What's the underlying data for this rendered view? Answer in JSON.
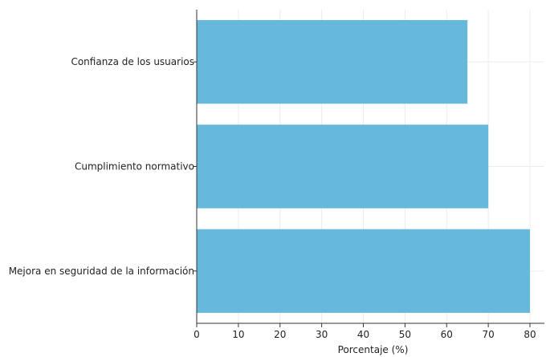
{
  "chart_data": {
    "type": "bar",
    "orientation": "horizontal",
    "categories": [
      "Confianza de los usuarios",
      "Cumplimiento normativo",
      "Mejora en seguridad de la información"
    ],
    "values": [
      65,
      70,
      80
    ],
    "xlabel": "Porcentaje (%)",
    "ylabel": "",
    "title": "",
    "xlim": [
      0,
      80
    ],
    "xticks": [
      "0",
      "10",
      "20",
      "30",
      "40",
      "50",
      "60",
      "70",
      "80"
    ],
    "grid": true,
    "legend": "none",
    "bar_color": "#67b9dc"
  }
}
